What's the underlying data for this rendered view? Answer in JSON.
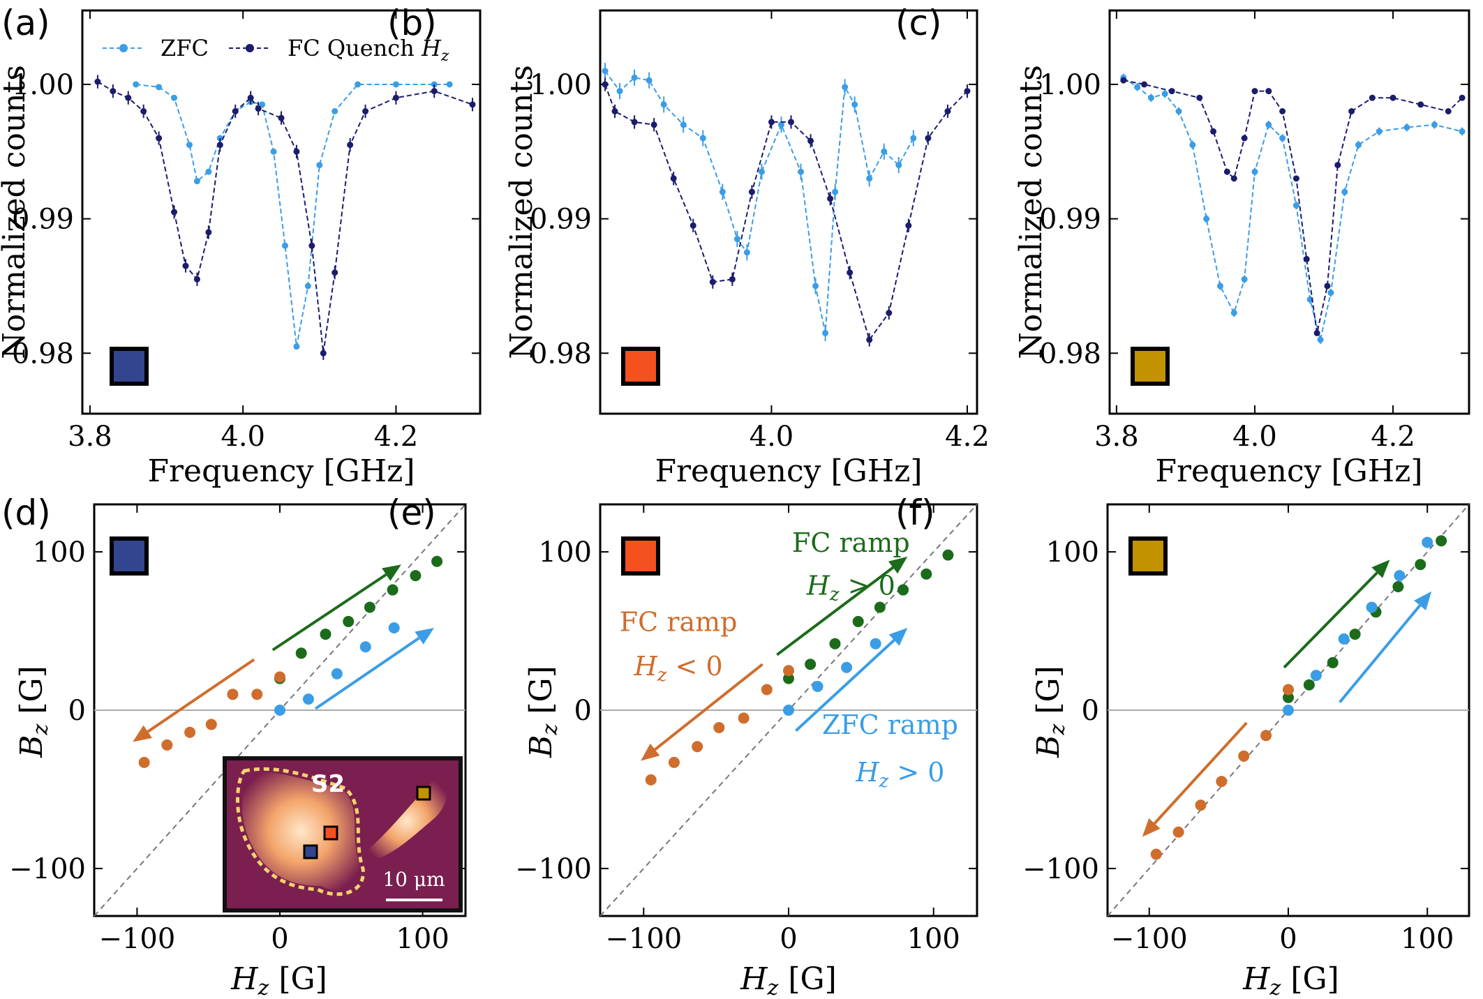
{
  "colors": {
    "zfc": "#3a9de6",
    "fc": "#1b1c6b",
    "green": "#1b6b1b",
    "orange": "#cf6d2c",
    "blue_marker": "#33458f",
    "orange_marker": "#f4511e",
    "gold_marker": "#c39200"
  },
  "legend": {
    "zfc": "ZFC",
    "fc_prefix": "FC Quench ",
    "fc_var": "H",
    "fc_sub": "z"
  },
  "inset": {
    "label": "S2",
    "scale_text": "10 μm"
  },
  "chart_data": [
    {
      "id": "a",
      "label": "(a)",
      "type": "line",
      "xlabel": "Frequency [GHz]",
      "ylabel": "Normalized counts",
      "xlim": [
        3.79,
        4.31
      ],
      "ylim": [
        0.9755,
        1.0055
      ],
      "xticks": [
        3.8,
        4.0,
        4.2
      ],
      "xtick_labels": [
        "3.8",
        "4.0",
        "4.2"
      ],
      "yticks": [
        0.98,
        0.99,
        1.0
      ],
      "ytick_labels": [
        "0.98",
        "0.99",
        "1.00"
      ],
      "square_marker": "blue_marker",
      "legend": true,
      "series": [
        {
          "name": "ZFC",
          "color": "zfc",
          "err": 0.0002,
          "x": [
            3.86,
            3.89,
            3.91,
            3.93,
            3.94,
            3.955,
            3.97,
            3.99,
            4.01,
            4.025,
            4.04,
            4.055,
            4.07,
            4.085,
            4.1,
            4.12,
            4.15,
            4.2,
            4.25,
            4.27
          ],
          "y": [
            1.0,
            0.9998,
            0.999,
            0.9955,
            0.9928,
            0.9935,
            0.996,
            0.998,
            0.9987,
            0.9985,
            0.995,
            0.988,
            0.9805,
            0.985,
            0.994,
            0.998,
            1.0,
            1.0,
            1.0,
            1.0
          ]
        },
        {
          "name": "FC Quench H_z",
          "color": "fc",
          "err": 0.0005,
          "x": [
            3.81,
            3.83,
            3.85,
            3.87,
            3.89,
            3.91,
            3.925,
            3.94,
            3.955,
            3.97,
            3.99,
            4.01,
            4.02,
            4.05,
            4.07,
            4.09,
            4.105,
            4.12,
            4.14,
            4.16,
            4.2,
            4.25,
            4.3
          ],
          "y": [
            1.0002,
            0.9995,
            0.999,
            0.998,
            0.996,
            0.9905,
            0.9865,
            0.9855,
            0.989,
            0.9955,
            0.998,
            0.999,
            0.9982,
            0.9975,
            0.995,
            0.988,
            0.98,
            0.986,
            0.9955,
            0.998,
            0.999,
            0.9995,
            0.9985
          ]
        }
      ]
    },
    {
      "id": "b",
      "label": "(b)",
      "type": "line",
      "xlabel": "Frequency [GHz]",
      "ylabel": "Normalized counts",
      "xlim": [
        3.825,
        4.21
      ],
      "ylim": [
        0.9755,
        1.0055
      ],
      "xticks": [
        4.0,
        4.2
      ],
      "xtick_labels": [
        "4.0",
        "4.2"
      ],
      "yticks": [
        0.98,
        0.99,
        1.0
      ],
      "ytick_labels": [
        "0.98",
        "0.99",
        "1.00"
      ],
      "square_marker": "orange_marker",
      "legend": false,
      "series": [
        {
          "name": "ZFC",
          "color": "zfc",
          "err": 0.0006,
          "x": [
            3.83,
            3.845,
            3.86,
            3.875,
            3.89,
            3.91,
            3.93,
            3.95,
            3.965,
            3.975,
            3.99,
            4.01,
            4.03,
            4.045,
            4.055,
            4.065,
            4.075,
            4.085,
            4.1,
            4.115,
            4.13,
            4.145
          ],
          "y": [
            1.001,
            0.9995,
            1.0005,
            1.0003,
            0.9985,
            0.997,
            0.996,
            0.992,
            0.9885,
            0.9875,
            0.9935,
            0.997,
            0.9935,
            0.985,
            0.9815,
            0.992,
            0.9998,
            0.9985,
            0.993,
            0.995,
            0.994,
            0.996
          ]
        },
        {
          "name": "FC Quench H_z",
          "color": "fc",
          "err": 0.0005,
          "x": [
            3.83,
            3.84,
            3.86,
            3.88,
            3.9,
            3.92,
            3.94,
            3.96,
            3.98,
            4.0,
            4.02,
            4.04,
            4.06,
            4.08,
            4.1,
            4.12,
            4.14,
            4.16,
            4.18,
            4.2
          ],
          "y": [
            1.0,
            0.998,
            0.9972,
            0.997,
            0.993,
            0.9895,
            0.9853,
            0.9855,
            0.992,
            0.9972,
            0.9972,
            0.9958,
            0.9915,
            0.986,
            0.981,
            0.983,
            0.9895,
            0.996,
            0.998,
            0.9995
          ]
        }
      ]
    },
    {
      "id": "c",
      "label": "(c)",
      "type": "line",
      "xlabel": "Frequency [GHz]",
      "ylabel": "Normalized counts",
      "xlim": [
        3.79,
        4.31
      ],
      "ylim": [
        0.9755,
        1.0055
      ],
      "xticks": [
        3.8,
        4.0,
        4.2
      ],
      "xtick_labels": [
        "3.8",
        "4.0",
        "4.2"
      ],
      "yticks": [
        0.98,
        0.99,
        1.0
      ],
      "ytick_labels": [
        "0.98",
        "0.99",
        "1.00"
      ],
      "square_marker": "gold_marker",
      "legend": false,
      "series": [
        {
          "name": "ZFC",
          "color": "zfc",
          "err": 0.0003,
          "x": [
            3.81,
            3.83,
            3.85,
            3.87,
            3.89,
            3.91,
            3.93,
            3.95,
            3.97,
            3.985,
            4.0,
            4.02,
            4.04,
            4.06,
            4.08,
            4.095,
            4.11,
            4.13,
            4.15,
            4.18,
            4.22,
            4.26,
            4.3
          ],
          "y": [
            1.0005,
            0.9998,
            0.999,
            0.9993,
            0.998,
            0.9955,
            0.99,
            0.985,
            0.983,
            0.9855,
            0.9935,
            0.997,
            0.996,
            0.991,
            0.984,
            0.981,
            0.9845,
            0.992,
            0.9955,
            0.9965,
            0.9968,
            0.997,
            0.9965
          ]
        },
        {
          "name": "FC Quench H_z",
          "color": "fc",
          "err": 0.0002,
          "x": [
            3.81,
            3.84,
            3.88,
            3.92,
            3.94,
            3.96,
            3.97,
            3.985,
            4.0,
            4.02,
            4.04,
            4.06,
            4.075,
            4.09,
            4.105,
            4.12,
            4.14,
            4.17,
            4.2,
            4.24,
            4.28,
            4.3
          ],
          "y": [
            1.0003,
            1.0,
            0.9995,
            0.999,
            0.9965,
            0.9935,
            0.993,
            0.996,
            0.9995,
            0.9995,
            0.998,
            0.993,
            0.987,
            0.9815,
            0.985,
            0.994,
            0.998,
            0.999,
            0.999,
            0.9985,
            0.998,
            0.999
          ]
        }
      ]
    },
    {
      "id": "d",
      "label": "(d)",
      "type": "scatter",
      "xlabel_var": "H",
      "xlabel_sub": "z",
      "xlabel_unit": " [G]",
      "ylabel_var": "B",
      "ylabel_sub": "z",
      "ylabel_unit": " [G]",
      "xlim": [
        -130,
        130
      ],
      "ylim": [
        -130,
        130
      ],
      "xticks": [
        -100,
        0,
        100
      ],
      "xtick_labels": [
        "−100",
        "0",
        "100"
      ],
      "yticks": [
        -100,
        0,
        100
      ],
      "ytick_labels": [
        "−100",
        "0",
        "100"
      ],
      "square_marker": "blue_marker",
      "series": [
        {
          "name": "FC ramp H_z > 0",
          "color": "green",
          "x": [
            0,
            15,
            32,
            48,
            63,
            79,
            95,
            110
          ],
          "y": [
            20,
            36,
            48,
            56,
            65,
            76,
            85,
            94
          ]
        },
        {
          "name": "FC ramp H_z < 0",
          "color": "orange",
          "x": [
            0,
            -16,
            -33,
            -48,
            -63,
            -79,
            -95
          ],
          "y": [
            21,
            10,
            10,
            -9,
            -14,
            -22,
            -33
          ]
        },
        {
          "name": "ZFC ramp H_z > 0",
          "color": "zfc",
          "x": [
            0,
            20,
            40,
            60,
            80
          ],
          "y": [
            0,
            7,
            23,
            40,
            52
          ]
        }
      ],
      "arrows": [
        {
          "color": "green",
          "from": [
            -5,
            38
          ],
          "to": [
            85,
            92
          ]
        },
        {
          "color": "orange",
          "from": [
            -18,
            32
          ],
          "to": [
            -103,
            -20
          ]
        },
        {
          "color": "zfc",
          "from": [
            25,
            1
          ],
          "to": [
            108,
            52
          ]
        }
      ],
      "annotations": []
    },
    {
      "id": "e",
      "label": "(e)",
      "type": "scatter",
      "xlabel_var": "H",
      "xlabel_sub": "z",
      "xlabel_unit": " [G]",
      "ylabel_var": "B",
      "ylabel_sub": "z",
      "ylabel_unit": " [G]",
      "xlim": [
        -130,
        130
      ],
      "ylim": [
        -130,
        130
      ],
      "xticks": [
        -100,
        0,
        100
      ],
      "xtick_labels": [
        "−100",
        "0",
        "100"
      ],
      "yticks": [
        -100,
        0,
        100
      ],
      "ytick_labels": [
        "−100",
        "0",
        "100"
      ],
      "square_marker": "orange_marker",
      "series": [
        {
          "name": "FC ramp H_z > 0",
          "color": "green",
          "x": [
            0,
            15,
            32,
            48,
            63,
            79,
            95,
            110
          ],
          "y": [
            20,
            29,
            42,
            56,
            65,
            76,
            86,
            98
          ]
        },
        {
          "name": "FC ramp H_z < 0",
          "color": "orange",
          "x": [
            0,
            -15,
            -31,
            -48,
            -63,
            -79,
            -95
          ],
          "y": [
            25,
            13,
            -5,
            -11,
            -23,
            -33,
            -44
          ]
        },
        {
          "name": "ZFC ramp H_z > 0",
          "color": "zfc",
          "x": [
            0,
            20,
            40,
            60
          ],
          "y": [
            0,
            15,
            27,
            42
          ]
        }
      ],
      "arrows": [
        {
          "color": "green",
          "from": [
            -8,
            35
          ],
          "to": [
            82,
            97
          ]
        },
        {
          "color": "orange",
          "from": [
            -18,
            29
          ],
          "to": [
            -102,
            -32
          ]
        },
        {
          "color": "zfc",
          "from": [
            5,
            -13
          ],
          "to": [
            82,
            52
          ]
        }
      ],
      "annotations": [
        {
          "color": "green",
          "lines": [
            "FC ramp"
          ],
          "cond_var": "H",
          "cond_sub": "z",
          "cond_op": " > 0",
          "x": 43,
          "y": 100,
          "x2": 43,
          "y2": 73
        },
        {
          "color": "orange",
          "lines": [
            "FC ramp"
          ],
          "cond_var": "H",
          "cond_sub": "z",
          "cond_op": " < 0",
          "x": -76,
          "y": 50,
          "x2": -76,
          "y2": 22
        },
        {
          "color": "zfc",
          "lines": [
            "ZFC ramp"
          ],
          "cond_var": "H",
          "cond_sub": "z",
          "cond_op": " > 0",
          "x": 70,
          "y": -15,
          "x2": 77,
          "y2": -45
        }
      ]
    },
    {
      "id": "f",
      "label": "(f)",
      "type": "scatter",
      "xlabel_var": "H",
      "xlabel_sub": "z",
      "xlabel_unit": " [G]",
      "ylabel_var": "B",
      "ylabel_sub": "z",
      "ylabel_unit": " [G]",
      "xlim": [
        -130,
        130
      ],
      "ylim": [
        -130,
        130
      ],
      "xticks": [
        -100,
        0,
        100
      ],
      "xtick_labels": [
        "−100",
        "0",
        "100"
      ],
      "yticks": [
        -100,
        0,
        100
      ],
      "ytick_labels": [
        "−100",
        "0",
        "100"
      ],
      "square_marker": "gold_marker",
      "series": [
        {
          "name": "FC ramp H_z > 0",
          "color": "green",
          "x": [
            0,
            15,
            32,
            48,
            63,
            79,
            95,
            110
          ],
          "y": [
            8,
            16,
            30,
            48,
            62,
            78,
            92,
            107
          ]
        },
        {
          "name": "FC ramp H_z < 0",
          "color": "orange",
          "x": [
            0,
            -16,
            -32,
            -48,
            -63,
            -79,
            -95
          ],
          "y": [
            13,
            -16,
            -29,
            -45,
            -60,
            -77,
            -91
          ]
        },
        {
          "name": "ZFC ramp H_z > 0",
          "color": "zfc",
          "x": [
            0,
            20,
            40,
            60,
            80,
            100
          ],
          "y": [
            0,
            22,
            45,
            65,
            85,
            106
          ]
        }
      ],
      "arrows": [
        {
          "color": "green",
          "from": [
            -3,
            27
          ],
          "to": [
            73,
            95
          ]
        },
        {
          "color": "orange",
          "from": [
            -30,
            -8
          ],
          "to": [
            -105,
            -80
          ]
        },
        {
          "color": "zfc",
          "from": [
            37,
            5
          ],
          "to": [
            103,
            75
          ]
        }
      ],
      "annotations": []
    }
  ]
}
